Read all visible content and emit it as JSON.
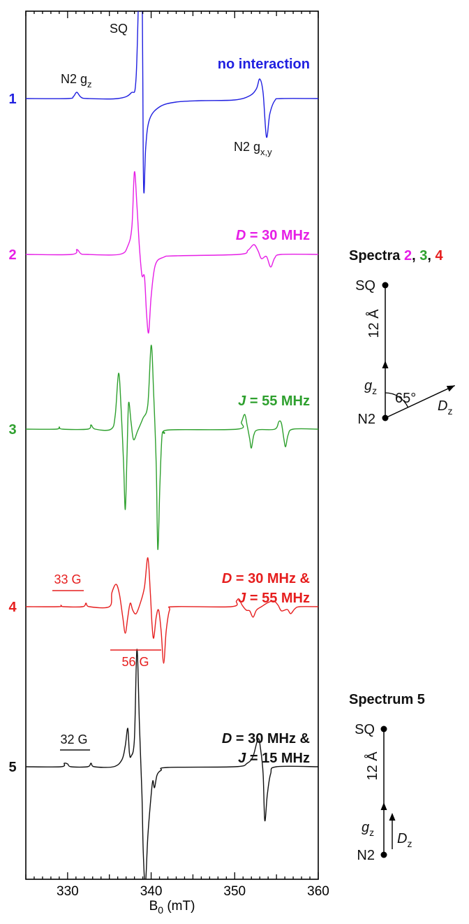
{
  "chart_data": {
    "type": "line",
    "xlabel": "B",
    "xlabel_sub": "0",
    "xlabel_unit": " (mT)",
    "xlim": [
      325,
      360
    ],
    "xticks": [
      330,
      340,
      350,
      360
    ],
    "grid": false,
    "series": [
      {
        "index": "1",
        "color": "#1f1fe0",
        "label": {
          "text": "no interaction"
        },
        "points": [
          [
            325,
            0
          ],
          [
            330.0,
            0
          ],
          [
            330.7,
            0.3
          ],
          [
            331.1,
            0.9
          ],
          [
            331.6,
            0.2
          ],
          [
            332.4,
            0
          ],
          [
            336.0,
            0
          ],
          [
            337.6,
            0.8
          ],
          [
            338.2,
            3.0
          ],
          [
            338.6,
            20
          ],
          [
            338.75,
            22
          ],
          [
            338.95,
            12
          ],
          [
            339.05,
            -8
          ],
          [
            339.15,
            -13.5
          ],
          [
            339.35,
            -7
          ],
          [
            339.8,
            -3
          ],
          [
            341.0,
            -1.2
          ],
          [
            343.0,
            -0.5
          ],
          [
            346.0,
            -0.3
          ],
          [
            350.0,
            -0.2
          ],
          [
            351.8,
            0.4
          ],
          [
            352.6,
            1.4
          ],
          [
            353.0,
            2.8
          ],
          [
            353.4,
            0.8
          ],
          [
            353.8,
            -5.5
          ],
          [
            354.2,
            -2.2
          ],
          [
            354.8,
            -0.3
          ],
          [
            355.6,
            0
          ],
          [
            360,
            0
          ]
        ]
      },
      {
        "index": "2",
        "color": "#e61ee6",
        "label": {
          "text": " = 30 MHz",
          "symbol": "D"
        },
        "points": [
          [
            325,
            0
          ],
          [
            330.5,
            0
          ],
          [
            331.1,
            0.7
          ],
          [
            331.6,
            0.1
          ],
          [
            332.3,
            0
          ],
          [
            336.2,
            0
          ],
          [
            337.2,
            1.2
          ],
          [
            337.7,
            4.0
          ],
          [
            338.0,
            11.8
          ],
          [
            338.3,
            7.0
          ],
          [
            338.6,
            1.0
          ],
          [
            338.9,
            -3.0
          ],
          [
            339.2,
            -3.2
          ],
          [
            339.45,
            -8.5
          ],
          [
            339.7,
            -11.2
          ],
          [
            340.0,
            -6.0
          ],
          [
            340.5,
            -1.5
          ],
          [
            341.5,
            -0.4
          ],
          [
            343.0,
            -0.2
          ],
          [
            350.5,
            0
          ],
          [
            351.6,
            0.6
          ],
          [
            352.3,
            1.4
          ],
          [
            352.8,
            0.5
          ],
          [
            353.2,
            -0.6
          ],
          [
            353.8,
            -0.3
          ],
          [
            354.3,
            -1.8
          ],
          [
            354.8,
            -0.5
          ],
          [
            355.6,
            0
          ],
          [
            360,
            0
          ]
        ]
      },
      {
        "index": "3",
        "color": "#2ea02e",
        "label": {
          "text": " = 55 MHz",
          "symbol": "J"
        },
        "points": [
          [
            325,
            0
          ],
          [
            328.6,
            0
          ],
          [
            329.0,
            0.3
          ],
          [
            329.4,
            0
          ],
          [
            332.4,
            0
          ],
          [
            332.8,
            0.6
          ],
          [
            333.3,
            0
          ],
          [
            335.2,
            0
          ],
          [
            335.7,
            2.0
          ],
          [
            336.1,
            8.0
          ],
          [
            336.4,
            3.0
          ],
          [
            336.7,
            -5.0
          ],
          [
            336.9,
            -11.5
          ],
          [
            337.1,
            -4.0
          ],
          [
            337.3,
            3.7
          ],
          [
            337.6,
            1.0
          ],
          [
            337.9,
            -1.5
          ],
          [
            338.4,
            -0.2
          ],
          [
            339.0,
            1.5
          ],
          [
            339.6,
            3.5
          ],
          [
            340.0,
            12.0
          ],
          [
            340.3,
            5.0
          ],
          [
            340.6,
            -5.0
          ],
          [
            340.8,
            -17.2
          ],
          [
            341.05,
            -8.0
          ],
          [
            341.3,
            -1.0
          ],
          [
            341.6,
            -0.6
          ],
          [
            342.3,
            -0.1
          ],
          [
            350.3,
            0
          ],
          [
            350.8,
            1.0
          ],
          [
            351.2,
            2.1
          ],
          [
            351.5,
            0.5
          ],
          [
            351.8,
            -1.4
          ],
          [
            352.0,
            -2.7
          ],
          [
            352.3,
            -0.8
          ],
          [
            352.8,
            -0.1
          ],
          [
            354.8,
            0
          ],
          [
            355.3,
            1.1
          ],
          [
            355.6,
            0.8
          ],
          [
            355.9,
            -1.5
          ],
          [
            356.1,
            -2.5
          ],
          [
            356.4,
            -0.8
          ],
          [
            357.0,
            0
          ],
          [
            360,
            0
          ]
        ]
      },
      {
        "index": "4",
        "color": "#e61e1e",
        "label": {
          "text": " = 30 MHz &",
          "symbol": "D",
          "line2": " = 55 MHz",
          "symbol2": "J"
        },
        "points": [
          [
            325,
            0
          ],
          [
            328.9,
            0
          ],
          [
            329.2,
            0.2
          ],
          [
            329.5,
            0
          ],
          [
            331.8,
            0
          ],
          [
            332.2,
            0.5
          ],
          [
            332.6,
            0
          ],
          [
            335.0,
            0
          ],
          [
            335.3,
            2.0
          ],
          [
            335.8,
            3.2
          ],
          [
            336.2,
            1.8
          ],
          [
            336.6,
            -1.5
          ],
          [
            336.9,
            -3.8
          ],
          [
            337.2,
            -1.5
          ],
          [
            337.5,
            0.5
          ],
          [
            337.8,
            -0.5
          ],
          [
            338.2,
            -1.0
          ],
          [
            338.7,
            0.5
          ],
          [
            339.2,
            2.8
          ],
          [
            339.6,
            7.0
          ],
          [
            339.9,
            2.0
          ],
          [
            340.1,
            -2.5
          ],
          [
            340.3,
            -4.5
          ],
          [
            340.6,
            -1.5
          ],
          [
            340.9,
            -0.5
          ],
          [
            341.2,
            -3.5
          ],
          [
            341.5,
            -8.1
          ],
          [
            341.8,
            -3.5
          ],
          [
            342.2,
            -0.5
          ],
          [
            342.8,
            0
          ],
          [
            349.6,
            0
          ],
          [
            350.2,
            0.8
          ],
          [
            350.5,
            1.1
          ],
          [
            350.9,
            0.2
          ],
          [
            351.4,
            -0.5
          ],
          [
            351.8,
            -0.6
          ],
          [
            352.2,
            -1.5
          ],
          [
            352.6,
            -0.5
          ],
          [
            353.2,
            0
          ],
          [
            354.0,
            0.6
          ],
          [
            354.7,
            0.8
          ],
          [
            355.2,
            0.2
          ],
          [
            355.6,
            -0.6
          ],
          [
            356.3,
            -0.4
          ],
          [
            356.7,
            -1.0
          ],
          [
            357.2,
            -0.3
          ],
          [
            357.8,
            0
          ],
          [
            360,
            0
          ]
        ]
      },
      {
        "index": "5",
        "color": "#111111",
        "label": {
          "text": " = 30 MHz &",
          "symbol": "D",
          "line2": " = 15 MHz",
          "symbol2": "J"
        },
        "points": [
          [
            325,
            0
          ],
          [
            329.2,
            0
          ],
          [
            329.6,
            0.5
          ],
          [
            330.0,
            0.4
          ],
          [
            330.4,
            0
          ],
          [
            332.4,
            0
          ],
          [
            332.8,
            0.5
          ],
          [
            333.2,
            0
          ],
          [
            335.5,
            0
          ],
          [
            336.5,
            1.0
          ],
          [
            336.9,
            3.0
          ],
          [
            337.2,
            5.5
          ],
          [
            337.4,
            2.0
          ],
          [
            337.6,
            1.5
          ],
          [
            338.0,
            4.0
          ],
          [
            338.3,
            16.8
          ],
          [
            338.6,
            6.0
          ],
          [
            338.9,
            -4.0
          ],
          [
            339.05,
            -12.0
          ],
          [
            339.3,
            -17.0
          ],
          [
            339.6,
            -10.0
          ],
          [
            340.0,
            -4.0
          ],
          [
            340.2,
            -2.0
          ],
          [
            340.4,
            -3.0
          ],
          [
            340.7,
            -1.2
          ],
          [
            341.2,
            -0.5
          ],
          [
            342.0,
            -0.1
          ],
          [
            350.0,
            0
          ],
          [
            351.5,
            0.5
          ],
          [
            352.2,
            1.5
          ],
          [
            352.8,
            4.0
          ],
          [
            353.1,
            2.5
          ],
          [
            353.4,
            -1.0
          ],
          [
            353.6,
            -7.7
          ],
          [
            353.9,
            -4.0
          ],
          [
            354.3,
            -1.0
          ],
          [
            355.0,
            0
          ],
          [
            360,
            0
          ]
        ]
      }
    ],
    "annotations": [
      {
        "id": "sq",
        "text": "SQ"
      },
      {
        "id": "n2gz",
        "text": "N2 g",
        "sub": "z"
      },
      {
        "id": "n2gxy",
        "text": "N2 g",
        "sub": "x,y"
      },
      {
        "id": "bar33",
        "text": "33 G"
      },
      {
        "id": "bar56",
        "text": "56 G"
      },
      {
        "id": "bar32",
        "text": "32 G"
      }
    ]
  },
  "schemes": {
    "top": {
      "title": "Spectra ",
      "title_nums": [
        {
          "text": "2",
          "color": "#e61ee6"
        },
        {
          "text": ", ",
          "color": "#111111"
        },
        {
          "text": "3",
          "color": "#2ea02e"
        },
        {
          "text": ", ",
          "color": "#111111"
        },
        {
          "text": "4",
          "color": "#e61e1e"
        }
      ],
      "sq": "SQ",
      "n2": "N2",
      "distance": "12 Å",
      "gz": "g",
      "gz_sub": "z",
      "angle": "65°",
      "dz": "D",
      "dz_sub": "z"
    },
    "bottom": {
      "title": "Spectrum 5",
      "sq": "SQ",
      "n2": "N2",
      "distance": "12 Å",
      "gz": "g",
      "gz_sub": "z",
      "dz": "D",
      "dz_sub": "z"
    }
  }
}
